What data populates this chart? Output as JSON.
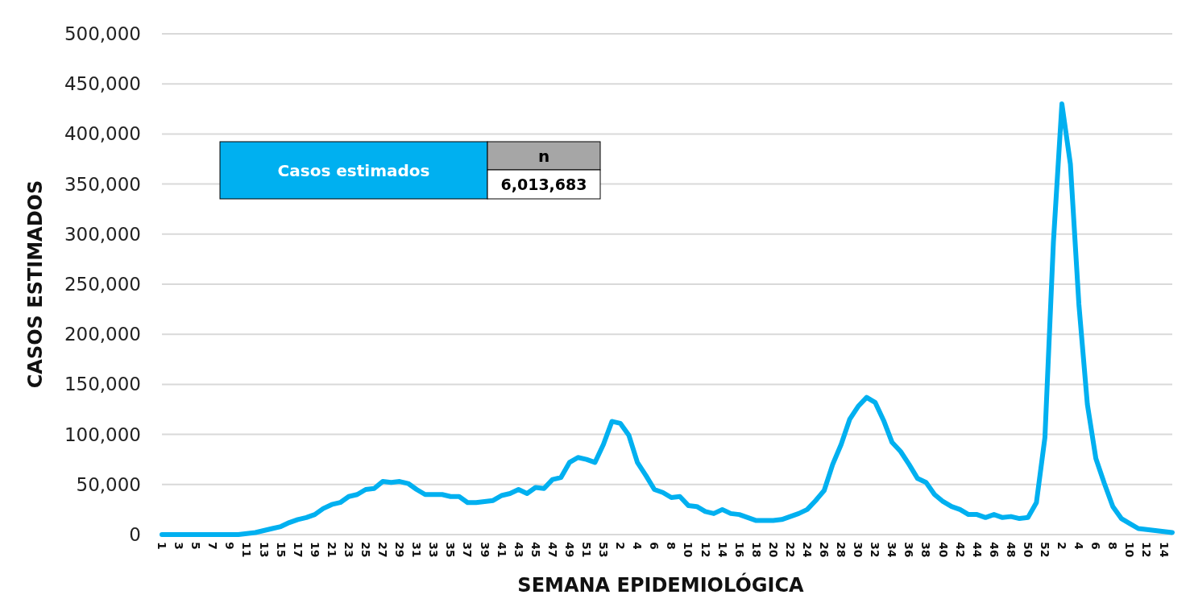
{
  "chart_data": {
    "type": "line",
    "xlabel": "SEMANA EPIDEMIOLÓGICA",
    "ylabel": "CASOS ESTIMADOS",
    "categories": [
      "1",
      null,
      "3",
      null,
      "5",
      null,
      "7",
      null,
      "9",
      null,
      "11",
      null,
      "13",
      null,
      "15",
      null,
      "17",
      null,
      "19",
      null,
      "21",
      null,
      "23",
      null,
      "25",
      null,
      "27",
      null,
      "29",
      null,
      "31",
      null,
      "33",
      null,
      "35",
      null,
      "37",
      null,
      "39",
      null,
      "41",
      null,
      "43",
      null,
      "45",
      null,
      "47",
      null,
      "49",
      null,
      "51",
      null,
      "53",
      null,
      "2",
      null,
      "4",
      null,
      "6",
      null,
      "8",
      null,
      "10",
      null,
      "12",
      null,
      "14",
      null,
      "16",
      null,
      "18",
      null,
      "20",
      null,
      "22",
      null,
      "24",
      null,
      "26",
      null,
      "28",
      null,
      "30",
      null,
      "32",
      null,
      "34",
      null,
      "36",
      null,
      "38",
      null,
      "40",
      null,
      "42",
      null,
      "44",
      null,
      "46",
      null,
      "48",
      null,
      "50",
      null,
      "52",
      null,
      "2",
      null,
      "4",
      null,
      "6",
      null,
      "8",
      null,
      "10",
      null,
      "12",
      null,
      "14",
      null
    ],
    "series": [
      {
        "color": "#00b0f0",
        "values": [
          0,
          0,
          0,
          0,
          0,
          0,
          0,
          0,
          0,
          0,
          1000,
          2000,
          4000,
          6000,
          8000,
          12000,
          15000,
          17000,
          20000,
          26000,
          30000,
          32000,
          38000,
          40000,
          45000,
          46000,
          53000,
          52000,
          53000,
          51000,
          45000,
          40000,
          40000,
          40000,
          38000,
          38000,
          32000,
          32000,
          33000,
          34000,
          39000,
          41000,
          45000,
          41000,
          47000,
          46000,
          55000,
          57000,
          72000,
          77000,
          75000,
          72000,
          90000,
          113000,
          111000,
          99000,
          72000,
          59000,
          45000,
          42000,
          37000,
          38000,
          29000,
          28000,
          23000,
          21000,
          25000,
          21000,
          20000,
          17000,
          14000,
          14000,
          14000,
          15000,
          18000,
          21000,
          25000,
          34000,
          44000,
          70000,
          90000,
          115000,
          128000,
          137000,
          132000,
          114000,
          92000,
          83000,
          70000,
          56000,
          52000,
          40000,
          33000,
          28000,
          25000,
          20000,
          20000,
          17000,
          20000,
          17000,
          18000,
          16000,
          17000,
          32000,
          97000,
          292000,
          430000,
          370000,
          230000,
          130000,
          76000,
          51000,
          28000,
          16000,
          11000,
          6000,
          5000,
          4000,
          3000,
          2000
        ]
      }
    ],
    "ylim": [
      0,
      500000
    ],
    "yticks": [
      0,
      {
        "value": 50000,
        "label": "50,000"
      },
      {
        "value": 100000,
        "label": "100,000"
      },
      {
        "value": 150000,
        "label": "150,000"
      },
      {
        "value": 200000,
        "label": "200,000"
      },
      {
        "value": 250000,
        "label": "250,000"
      },
      {
        "value": 300000,
        "label": "300,000"
      },
      {
        "value": 350000,
        "label": "350,000"
      },
      {
        "value": 400000,
        "label": "400,000"
      },
      {
        "value": 450000,
        "label": "450,000"
      },
      {
        "value": 500000,
        "label": "500,000"
      }
    ],
    "grid": "y",
    "marker": "none",
    "line_style": "solid",
    "annotations": [
      "Casos estimados",
      "n",
      "6,013,683"
    ]
  }
}
